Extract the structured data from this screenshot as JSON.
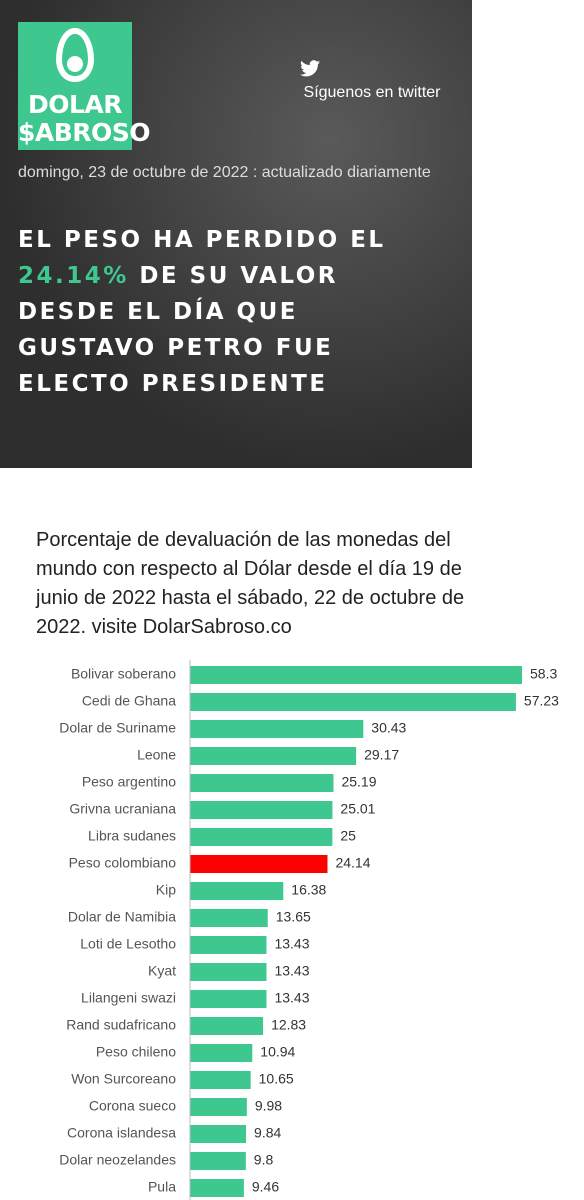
{
  "logo": {
    "line1": "DOLAR",
    "line2": "$ABROSO"
  },
  "twitter": "Síguenos en twitter",
  "date": "domingo, 23 de octubre de 2022 : actualizado diariamente",
  "headline_lines": [
    "EL PESO HA PERDIDO EL",
    "DE SU VALOR",
    "DESDE EL DÍA QUE",
    "GUSTAVO PETRO FUE",
    "ELECTO PRESIDENTE"
  ],
  "headline_highlight": "24.14%",
  "chart_data": {
    "type": "hbar",
    "title": "Porcentaje de devaluación de las monedas del mundo con respecto al Dólar desde el día 19 de junio de 2022 hasta el sábado, 22 de octubre de 2022. visite DolarSabroso.co",
    "categories": [
      "Bolivar soberano",
      "Cedi de Ghana",
      "Dolar de Suriname",
      "Leone",
      "Peso argentino",
      "Grivna ucraniana",
      "Libra sudanes",
      "Peso colombiano",
      "Kip",
      "Dolar de Namibia",
      "Loti de Lesotho",
      "Kyat",
      "Lilangeni swazi",
      "Rand sudafricano",
      "Peso chileno",
      "Won Surcoreano",
      "Corona sueco",
      "Corona islandesa",
      "Dolar neozelandes",
      "Pula"
    ],
    "values": [
      58.3,
      57.23,
      30.43,
      29.17,
      25.19,
      25.01,
      25,
      24.14,
      16.38,
      13.65,
      13.43,
      13.43,
      13.43,
      12.83,
      10.94,
      10.65,
      9.98,
      9.84,
      9.8,
      9.46
    ],
    "colors": [
      "#3ec78f",
      "#3ec78f",
      "#3ec78f",
      "#3ec78f",
      "#3ec78f",
      "#3ec78f",
      "#3ec78f",
      "#ff0000",
      "#3ec78f",
      "#3ec78f",
      "#3ec78f",
      "#3ec78f",
      "#3ec78f",
      "#3ec78f",
      "#3ec78f",
      "#3ec78f",
      "#3ec78f",
      "#3ec78f",
      "#3ec78f",
      "#3ec78f"
    ]
  }
}
